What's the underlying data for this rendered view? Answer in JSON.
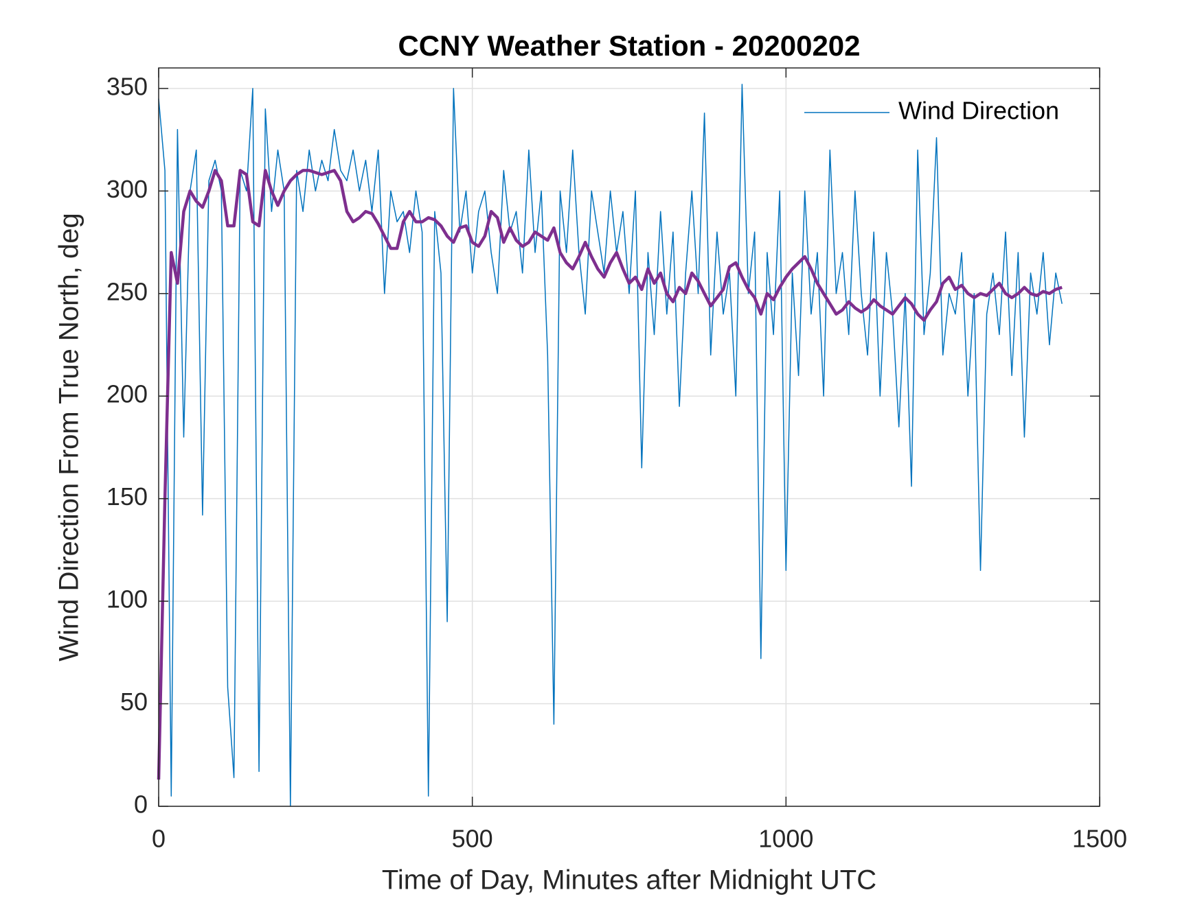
{
  "chart_data": {
    "type": "line",
    "title": "CCNY Weather Station - 20200202",
    "xlabel": "Time of Day, Minutes after Midnight UTC",
    "ylabel": "Wind Direction From True North, deg",
    "x": [
      0,
      10,
      20,
      30,
      40,
      50,
      60,
      70,
      80,
      90,
      100,
      110,
      120,
      130,
      140,
      150,
      160,
      170,
      180,
      190,
      200,
      210,
      220,
      230,
      240,
      250,
      260,
      270,
      280,
      290,
      300,
      310,
      320,
      330,
      340,
      350,
      360,
      370,
      380,
      390,
      400,
      410,
      420,
      430,
      440,
      450,
      460,
      470,
      480,
      490,
      500,
      510,
      520,
      530,
      540,
      550,
      560,
      570,
      580,
      590,
      600,
      610,
      620,
      630,
      640,
      650,
      660,
      670,
      680,
      690,
      700,
      710,
      720,
      730,
      740,
      750,
      760,
      770,
      780,
      790,
      800,
      810,
      820,
      830,
      840,
      850,
      860,
      870,
      880,
      890,
      900,
      910,
      920,
      930,
      940,
      950,
      960,
      970,
      980,
      990,
      1000,
      1010,
      1020,
      1030,
      1040,
      1050,
      1060,
      1070,
      1080,
      1090,
      1100,
      1110,
      1120,
      1130,
      1140,
      1150,
      1160,
      1170,
      1180,
      1190,
      1200,
      1210,
      1220,
      1230,
      1240,
      1250,
      1260,
      1270,
      1280,
      1290,
      1300,
      1310,
      1320,
      1330,
      1340,
      1350,
      1360,
      1370,
      1380,
      1390,
      1400,
      1410,
      1420,
      1430,
      1440
    ],
    "series": [
      {
        "name": "Wind Direction",
        "color": "#0072bd",
        "width": 1.5,
        "values": [
          345,
          310,
          5,
          330,
          180,
          300,
          320,
          142,
          305,
          315,
          300,
          58,
          14,
          310,
          300,
          350,
          17,
          340,
          290,
          320,
          300,
          0,
          310,
          290,
          320,
          300,
          315,
          305,
          330,
          310,
          305,
          320,
          300,
          315,
          290,
          320,
          250,
          300,
          285,
          290,
          270,
          300,
          280,
          5,
          290,
          260,
          90,
          350,
          280,
          300,
          260,
          290,
          300,
          270,
          250,
          310,
          280,
          290,
          260,
          320,
          270,
          300,
          220,
          40,
          300,
          270,
          320,
          270,
          240,
          300,
          280,
          260,
          300,
          270,
          290,
          250,
          300,
          165,
          270,
          230,
          290,
          240,
          280,
          195,
          260,
          300,
          250,
          338,
          220,
          280,
          240,
          260,
          200,
          352,
          250,
          280,
          72,
          270,
          230,
          300,
          115,
          260,
          210,
          300,
          240,
          270,
          200,
          320,
          250,
          270,
          230,
          300,
          250,
          220,
          280,
          200,
          270,
          240,
          185,
          250,
          156,
          320,
          230,
          260,
          326,
          220,
          250,
          240,
          270,
          200,
          250,
          115,
          240,
          260,
          230,
          280,
          210,
          270,
          180,
          260,
          240,
          270,
          225,
          260,
          245
        ]
      },
      {
        "color": "#7e2f8e",
        "width": 4.5,
        "values": [
          13,
          150,
          270,
          255,
          290,
          300,
          295,
          292,
          300,
          310,
          305,
          283,
          283,
          310,
          308,
          285,
          283,
          310,
          300,
          293,
          300,
          305,
          308,
          310,
          310,
          309,
          308,
          309,
          310,
          305,
          290,
          285,
          287,
          290,
          289,
          284,
          278,
          272,
          272,
          285,
          290,
          285,
          285,
          287,
          286,
          283,
          278,
          275,
          282,
          283,
          275,
          273,
          278,
          290,
          287,
          275,
          282,
          276,
          273,
          275,
          280,
          278,
          276,
          282,
          270,
          265,
          262,
          268,
          275,
          268,
          262,
          258,
          265,
          270,
          262,
          255,
          258,
          252,
          262,
          255,
          260,
          250,
          246,
          253,
          250,
          260,
          256,
          250,
          244,
          248,
          252,
          263,
          265,
          258,
          252,
          248,
          240,
          250,
          247,
          253,
          258,
          262,
          265,
          268,
          262,
          255,
          250,
          245,
          240,
          242,
          246,
          243,
          241,
          243,
          247,
          244,
          242,
          240,
          244,
          248,
          245,
          240,
          237,
          242,
          246,
          255,
          258,
          252,
          254,
          250,
          248,
          250,
          249,
          252,
          255,
          250,
          248,
          250,
          253,
          250,
          249,
          251,
          250,
          252,
          253
        ]
      }
    ],
    "xlim": [
      0,
      1500
    ],
    "xticks": [
      0,
      500,
      1000,
      1500
    ],
    "ylim": [
      0,
      360
    ],
    "yticks": [
      0,
      50,
      100,
      150,
      200,
      250,
      300,
      350
    ],
    "grid": true,
    "legend": "upper right"
  }
}
